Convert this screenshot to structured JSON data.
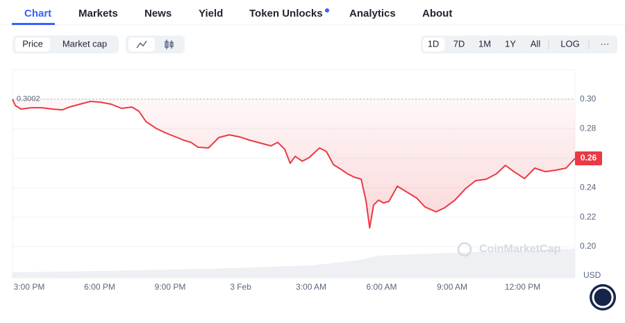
{
  "nav": {
    "tabs": [
      "Chart",
      "Markets",
      "News",
      "Yield",
      "Token Unlocks",
      "Analytics",
      "About"
    ]
  },
  "toolbar": {
    "metric": [
      "Price",
      "Market cap"
    ],
    "ranges": [
      "1D",
      "7D",
      "1M",
      "1Y",
      "All"
    ],
    "scale": "LOG",
    "more": "···"
  },
  "chart_data": {
    "type": "line",
    "color": "#ea3943",
    "x": [
      -0.71,
      -0.59,
      -0.35,
      0.09,
      0.53,
      0.98,
      1.42,
      1.71,
      2.16,
      2.6,
      3.04,
      3.49,
      3.93,
      4.37,
      4.67,
      4.97,
      5.41,
      5.85,
      6.3,
      6.59,
      6.89,
      7.18,
      7.63,
      8.07,
      8.51,
      8.96,
      9.4,
      9.84,
      10.29,
      10.58,
      10.88,
      11.11,
      11.32,
      11.62,
      11.91,
      12.36,
      12.65,
      12.95,
      13.24,
      13.54,
      13.83,
      14.13,
      14.34,
      14.49,
      14.66,
      14.87,
      15.08,
      15.31,
      15.67,
      16.05,
      16.49,
      16.85,
      17.32,
      17.68,
      18.12,
      18.56,
      19.0,
      19.45,
      19.89,
      20.27,
      20.63,
      21.08,
      21.52,
      21.96,
      22.41,
      22.85,
      23.23
    ],
    "values": [
      0.3,
      0.2958,
      0.2934,
      0.2943,
      0.2943,
      0.2934,
      0.2929,
      0.2948,
      0.2967,
      0.2986,
      0.2981,
      0.2967,
      0.2939,
      0.2948,
      0.292,
      0.2849,
      0.2802,
      0.2769,
      0.2741,
      0.2722,
      0.2708,
      0.2675,
      0.267,
      0.2741,
      0.2759,
      0.2745,
      0.2722,
      0.2703,
      0.2684,
      0.2708,
      0.266,
      0.2566,
      0.2613,
      0.258,
      0.2604,
      0.267,
      0.2646,
      0.2557,
      0.2528,
      0.2495,
      0.2472,
      0.2458,
      0.2307,
      0.2127,
      0.2283,
      0.2316,
      0.2297,
      0.2307,
      0.241,
      0.2373,
      0.233,
      0.2269,
      0.2236,
      0.2264,
      0.2316,
      0.2392,
      0.2448,
      0.2458,
      0.2495,
      0.2552,
      0.2509,
      0.2462,
      0.2533,
      0.2509,
      0.2519,
      0.2533,
      0.2599
    ],
    "reference_value": 0.3002,
    "last_value_label": "0.26",
    "y_unit": "USD",
    "watermark": "CoinMarketCap",
    "xlim": [
      -0.71,
      23.23
    ],
    "xticks": [
      {
        "value": 0,
        "label": "3:00 PM"
      },
      {
        "value": 3,
        "label": "6:00 PM"
      },
      {
        "value": 6,
        "label": "9:00 PM"
      },
      {
        "value": 9,
        "label": "3 Feb"
      },
      {
        "value": 12,
        "label": "3:00 AM"
      },
      {
        "value": 15,
        "label": "6:00 AM"
      },
      {
        "value": 18,
        "label": "9:00 AM"
      },
      {
        "value": 21,
        "label": "12:00 PM"
      }
    ],
    "ylim": [
      0.1788,
      0.3203
    ],
    "yticks": [
      {
        "value": 0.2,
        "label": "0.20"
      },
      0.22,
      0.24,
      0.26,
      0.28,
      {
        "value": 0.3,
        "label": "0.30"
      }
    ],
    "grid": true
  }
}
